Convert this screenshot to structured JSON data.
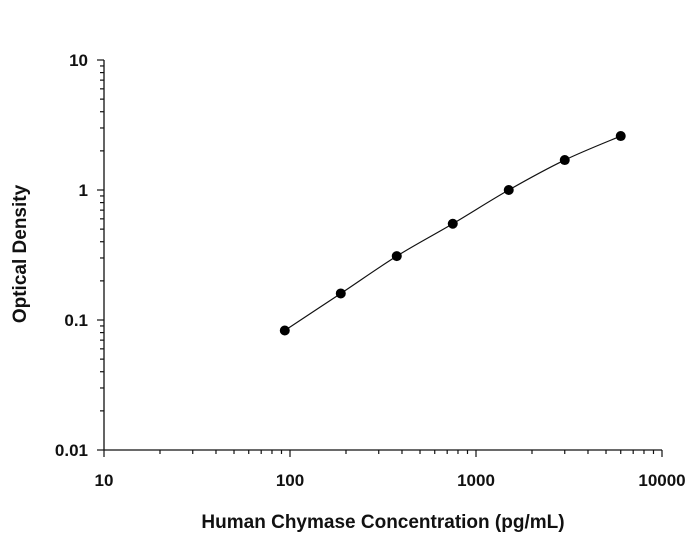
{
  "chart_data": {
    "type": "scatter",
    "title": "",
    "xlabel": "Human Chymase Concentration (pg/mL)",
    "ylabel": "Optical Density",
    "x_scale": "log",
    "y_scale": "log",
    "xlim": [
      10,
      10000
    ],
    "ylim": [
      0.01,
      10
    ],
    "x_tick_labels": [
      "10",
      "100",
      "1000",
      "10000"
    ],
    "y_tick_labels": [
      "10",
      "1",
      "0.1",
      "0.01"
    ],
    "grid": false,
    "legend": "none",
    "series": [
      {
        "x": [
          93.75,
          187.5,
          375,
          750,
          1500,
          3000,
          6000
        ],
        "y": [
          0.083,
          0.16,
          0.31,
          0.55,
          1.0,
          1.7,
          2.6
        ]
      }
    ],
    "fit_curve": true,
    "colors": {
      "points": "#000000",
      "axes": "#111111"
    }
  }
}
